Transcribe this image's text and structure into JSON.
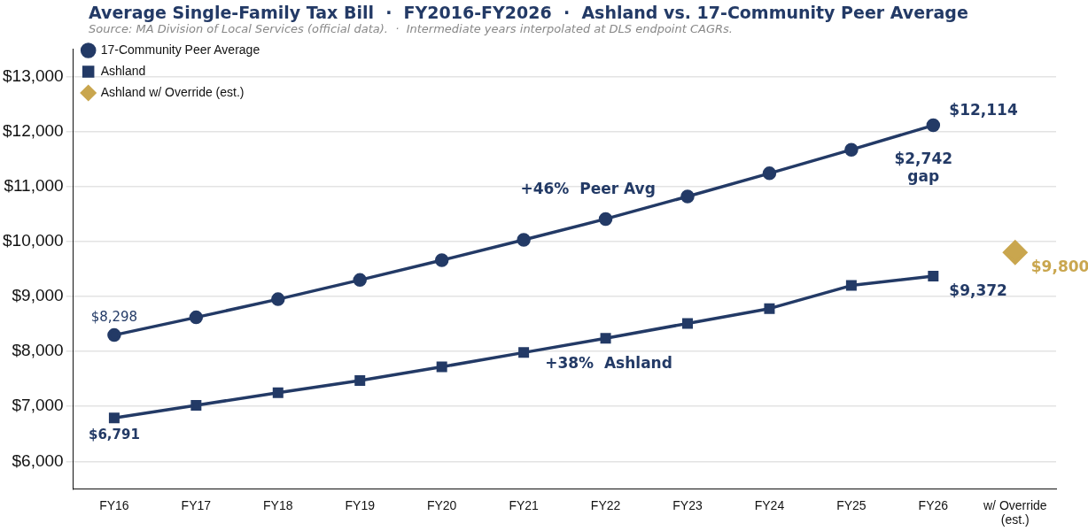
{
  "chart_data": {
    "type": "line",
    "title": "Average Single-Family Tax Bill  ·  FY2016-FY2026  ·  Ashland vs. 17-Community Peer Average",
    "subtitle": "Source: MA Division of Local Services (official data).  ·  Intermediate years interpolated at DLS endpoint CAGRs.",
    "categories": [
      "FY16",
      "FY17",
      "FY18",
      "FY19",
      "FY20",
      "FY21",
      "FY22",
      "FY23",
      "FY24",
      "FY25",
      "FY26",
      "w/ Override\n(est.)"
    ],
    "series": [
      {
        "name": "17-Community Peer Average",
        "color": "#233a66",
        "marker": "circle",
        "values": [
          8298,
          8620,
          8950,
          9300,
          9660,
          10030,
          10410,
          10820,
          11240,
          11670,
          12114,
          null
        ],
        "value_labels": [
          "$8,298",
          null,
          null,
          null,
          null,
          null,
          null,
          null,
          null,
          null,
          "$12,114",
          null
        ]
      },
      {
        "name": "Ashland",
        "color": "#233a66",
        "marker": "square",
        "values": [
          6791,
          7020,
          7250,
          7470,
          7720,
          7980,
          8240,
          8510,
          8780,
          9200,
          9372,
          null
        ],
        "value_labels": [
          "$6,791",
          null,
          null,
          null,
          null,
          null,
          null,
          null,
          null,
          null,
          "$9,372",
          null
        ]
      },
      {
        "name": "Ashland w/ Override (est.)",
        "type": "scatter",
        "color": "#c9a64e",
        "marker": "diamond",
        "values": [
          null,
          null,
          null,
          null,
          null,
          null,
          null,
          null,
          null,
          null,
          null,
          9800
        ],
        "value_labels": [
          null,
          null,
          null,
          null,
          null,
          null,
          null,
          null,
          null,
          null,
          null,
          "$9,800"
        ]
      }
    ],
    "annotations": [
      "+46%  Peer Avg",
      "+38%  Ashland",
      "$2,742\ngap"
    ],
    "ylim": [
      5500,
      13500
    ],
    "yticks": [
      {
        "value": 6000,
        "label": "$6,000"
      },
      {
        "value": 7000,
        "label": "$7,000"
      },
      {
        "value": 8000,
        "label": "$8,000"
      },
      {
        "value": 9000,
        "label": "$9,000"
      },
      {
        "value": 10000,
        "label": "$10,000"
      },
      {
        "value": 11000,
        "label": "$11,000"
      },
      {
        "value": 12000,
        "label": "$12,000"
      },
      {
        "value": 13000,
        "label": "$13,000"
      }
    ],
    "grid": "y",
    "legend": "top left",
    "line_style": "solid"
  }
}
